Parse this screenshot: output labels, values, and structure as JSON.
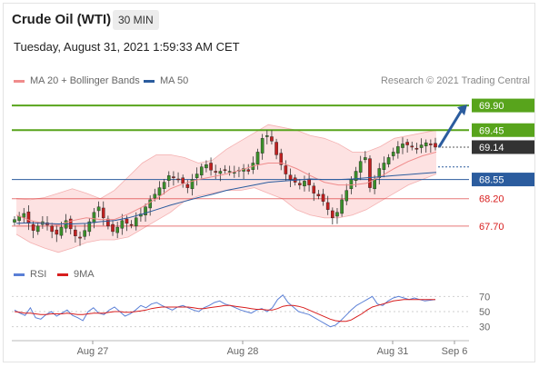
{
  "header": {
    "title": "Crude Oil (WTI)",
    "timeframe": "30 MIN",
    "datetime": "Tuesday, August 31, 2021 1:59:33 AM CET"
  },
  "legend": {
    "items": [
      {
        "label": "MA 20 + Bollinger Bands",
        "color": "#f08c8c"
      },
      {
        "label": "MA 50",
        "color": "#2b5c9e"
      }
    ],
    "credit": "Research © 2021 Trading Central"
  },
  "rsi_legend": {
    "items": [
      {
        "label": "RSI",
        "color": "#5a7fd6"
      },
      {
        "label": "9MA",
        "color": "#d81e1e"
      }
    ]
  },
  "chart_data": [
    {
      "type": "candlestick",
      "title": "",
      "x_tick_labels": [
        "Aug 27",
        "Aug 28",
        "Aug 31",
        "Sep 6"
      ],
      "ylim": [
        67.35,
        70.15
      ],
      "levels": [
        {
          "value": 69.9,
          "label": "69.90",
          "kind": "resistance",
          "color": "#58a41c"
        },
        {
          "value": 69.45,
          "label": "69.45",
          "kind": "resistance",
          "color": "#58a41c"
        },
        {
          "value": 69.14,
          "label": "69.14",
          "kind": "last-price",
          "color": "#333333"
        },
        {
          "value": 68.55,
          "label": "68.55",
          "kind": "pivot",
          "color": "#2b5c9e"
        },
        {
          "value": 68.2,
          "label": "68.20",
          "kind": "support",
          "color": "#d81e1e"
        },
        {
          "value": 67.7,
          "label": "67.70",
          "kind": "support",
          "color": "#d81e1e"
        }
      ],
      "forecast_arrow": {
        "from": 69.14,
        "to": 69.9,
        "color": "#2b5c9e"
      },
      "close_series": [
        67.82,
        67.88,
        67.93,
        67.75,
        67.62,
        67.7,
        67.78,
        67.72,
        67.6,
        67.55,
        67.68,
        67.8,
        67.65,
        67.52,
        67.48,
        67.62,
        67.78,
        67.95,
        68.05,
        67.85,
        67.7,
        67.6,
        67.68,
        67.8,
        67.75,
        67.72,
        67.85,
        67.92,
        68.05,
        68.18,
        68.28,
        68.4,
        68.5,
        68.62,
        68.58,
        68.55,
        68.48,
        68.4,
        68.55,
        68.65,
        68.78,
        68.82,
        68.72,
        68.68,
        68.7,
        68.72,
        68.7,
        68.68,
        68.72,
        68.75,
        68.7,
        68.85,
        69.05,
        69.3,
        69.35,
        69.25,
        69.0,
        68.82,
        68.65,
        68.55,
        68.5,
        68.45,
        68.52,
        68.45,
        68.3,
        68.25,
        68.15,
        68.0,
        67.85,
        67.95,
        68.18,
        68.35,
        68.55,
        68.7,
        68.88,
        68.95,
        68.4,
        68.55,
        68.75,
        68.85,
        68.95,
        69.05,
        69.15,
        69.2,
        69.18,
        69.14,
        69.1,
        69.18,
        69.22,
        69.18,
        69.14
      ],
      "bb_upper": [
        68.2,
        68.18,
        68.22,
        68.3,
        68.38,
        68.3,
        68.2,
        68.35,
        68.6,
        68.85,
        69.0,
        69.0,
        68.95,
        68.85,
        68.9,
        69.1,
        69.25,
        69.4,
        69.55,
        69.5,
        69.45,
        69.35,
        69.3,
        69.2,
        69.05,
        69.05,
        69.15,
        69.3,
        69.35,
        69.4,
        69.45
      ],
      "bb_lower": [
        67.55,
        67.4,
        67.3,
        67.22,
        67.3,
        67.4,
        67.45,
        67.45,
        67.5,
        67.65,
        67.8,
        67.95,
        68.15,
        68.25,
        68.3,
        68.35,
        68.35,
        68.4,
        68.3,
        68.2,
        68.0,
        67.9,
        67.85,
        67.85,
        67.9,
        68.0,
        68.15,
        68.3,
        68.45,
        68.55,
        68.65
      ],
      "ma20": [
        67.9,
        67.8,
        67.75,
        67.72,
        67.8,
        67.85,
        67.82,
        67.82,
        67.92,
        68.05,
        68.2,
        68.38,
        68.48,
        68.55,
        68.6,
        68.65,
        68.72,
        68.8,
        68.85,
        68.85,
        68.75,
        68.62,
        68.5,
        68.45,
        68.45,
        68.48,
        68.6,
        68.75,
        68.88,
        68.98,
        69.05
      ],
      "ma50": [
        67.75,
        67.76,
        67.75,
        67.74,
        67.74,
        67.75,
        67.78,
        67.8,
        67.85,
        67.92,
        68.0,
        68.08,
        68.15,
        68.22,
        68.28,
        68.35,
        68.4,
        68.45,
        68.5,
        68.52,
        68.54,
        68.56,
        68.55,
        68.55,
        68.56,
        68.58,
        68.6,
        68.62,
        68.64,
        68.66,
        68.68
      ]
    },
    {
      "type": "line",
      "title": "",
      "ylim": [
        20,
        80
      ],
      "y_ticks": [
        30,
        50,
        70
      ],
      "series": [
        {
          "name": "RSI",
          "color": "#5a7fd6",
          "values": [
            52,
            48,
            45,
            55,
            42,
            40,
            46,
            50,
            44,
            48,
            52,
            45,
            42,
            38,
            50,
            55,
            48,
            46,
            52,
            56,
            50,
            44,
            47,
            52,
            58,
            55,
            60,
            62,
            58,
            55,
            52,
            56,
            58,
            55,
            52,
            50,
            55,
            58,
            62,
            64,
            60,
            58,
            55,
            52,
            50,
            48,
            52,
            54,
            50,
            55,
            66,
            72,
            62,
            56,
            50,
            48,
            46,
            42,
            38,
            34,
            30,
            32,
            38,
            45,
            52,
            58,
            62,
            66,
            70,
            60,
            58,
            64,
            68,
            70,
            68,
            66,
            68,
            66,
            64,
            65,
            66
          ]
        },
        {
          "name": "9MA",
          "color": "#d81e1e",
          "values": [
            50,
            49,
            48,
            48,
            47,
            46,
            46,
            47,
            47,
            47,
            48,
            47,
            46,
            46,
            47,
            48,
            48,
            48,
            49,
            50,
            50,
            49,
            49,
            50,
            51,
            52,
            54,
            55,
            56,
            56,
            56,
            56,
            56,
            56,
            55,
            54,
            54,
            55,
            56,
            57,
            58,
            58,
            57,
            56,
            55,
            54,
            53,
            53,
            52,
            52,
            54,
            57,
            58,
            58,
            57,
            55,
            52,
            49,
            46,
            43,
            40,
            38,
            37,
            37,
            39,
            43,
            47,
            52,
            56,
            58,
            60,
            62,
            64,
            65,
            66,
            66,
            66,
            66,
            66,
            66,
            66
          ]
        }
      ]
    }
  ]
}
